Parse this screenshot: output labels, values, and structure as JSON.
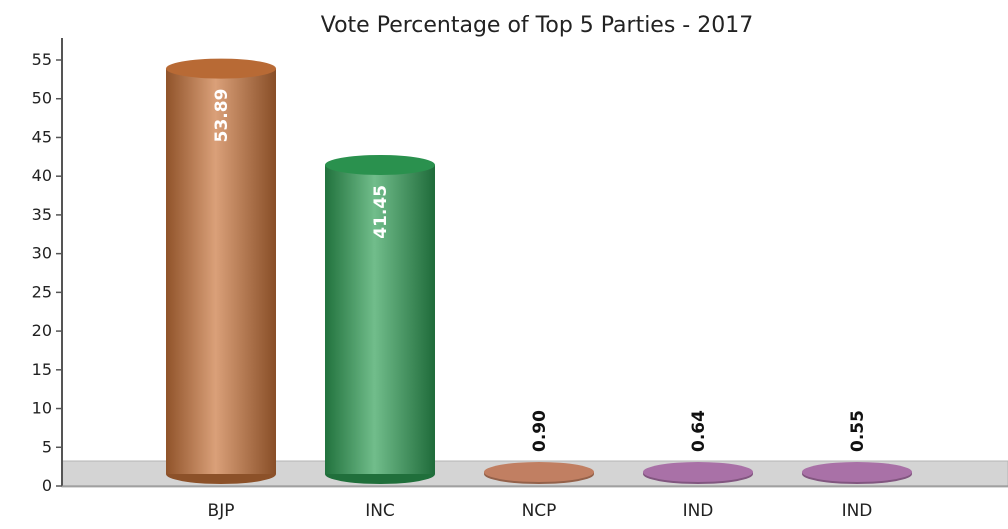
{
  "chart_data": {
    "type": "bar",
    "title": "Vote Percentage of Top 5 Parties - 2017",
    "categories": [
      "BJP",
      "INC",
      "NCP",
      "IND",
      "IND"
    ],
    "values": [
      53.89,
      41.45,
      0.9,
      0.64,
      0.55
    ],
    "value_labels": [
      "53.89",
      "41.45",
      "0.90",
      "0.64",
      "0.55"
    ],
    "colors": [
      "#c8733a",
      "#2e9e55",
      "#d28a6a",
      "#b87bb6",
      "#b87bb6"
    ],
    "yticks": [
      0,
      5,
      10,
      15,
      20,
      25,
      30,
      35,
      40,
      45,
      50,
      55
    ],
    "ylim": [
      0,
      55
    ],
    "xlabel": "",
    "ylabel": "",
    "legend": "none",
    "grid": false
  }
}
